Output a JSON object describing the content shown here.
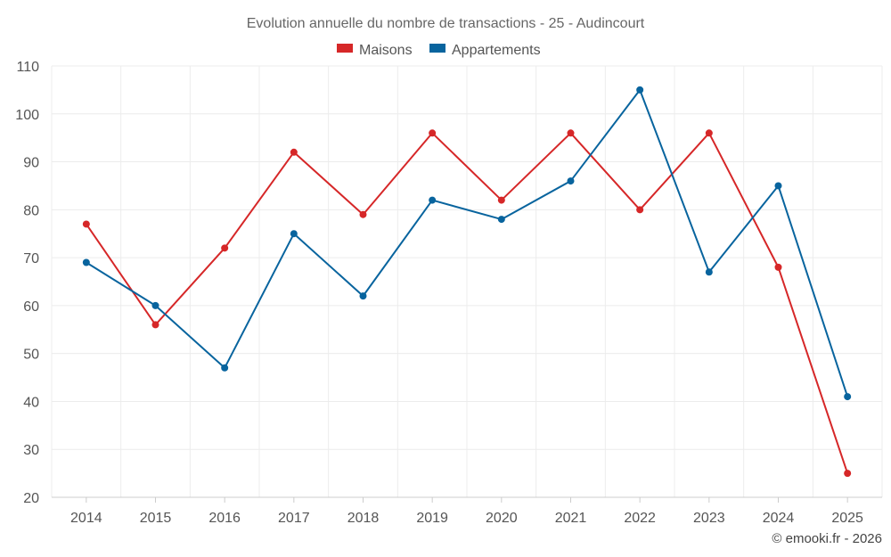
{
  "chart_data": {
    "type": "line",
    "title": "Evolution annuelle du nombre de transactions - 25 - Audincourt",
    "categories": [
      "2014",
      "2015",
      "2016",
      "2017",
      "2018",
      "2019",
      "2020",
      "2021",
      "2022",
      "2023",
      "2024",
      "2025"
    ],
    "series": [
      {
        "name": "Maisons",
        "color": "#d62728",
        "values": [
          77,
          56,
          72,
          92,
          79,
          96,
          82,
          96,
          80,
          96,
          68,
          25
        ]
      },
      {
        "name": "Appartements",
        "color": "#08649e",
        "values": [
          69,
          60,
          47,
          75,
          62,
          82,
          78,
          86,
          105,
          67,
          85,
          41
        ]
      }
    ],
    "ylim": [
      20,
      110
    ],
    "yticks": [
      20,
      30,
      40,
      50,
      60,
      70,
      80,
      90,
      100,
      110
    ],
    "grid": true,
    "legend": "top-center",
    "xlabel": "",
    "ylabel": ""
  },
  "credit": "© emooki.fr - 2026"
}
